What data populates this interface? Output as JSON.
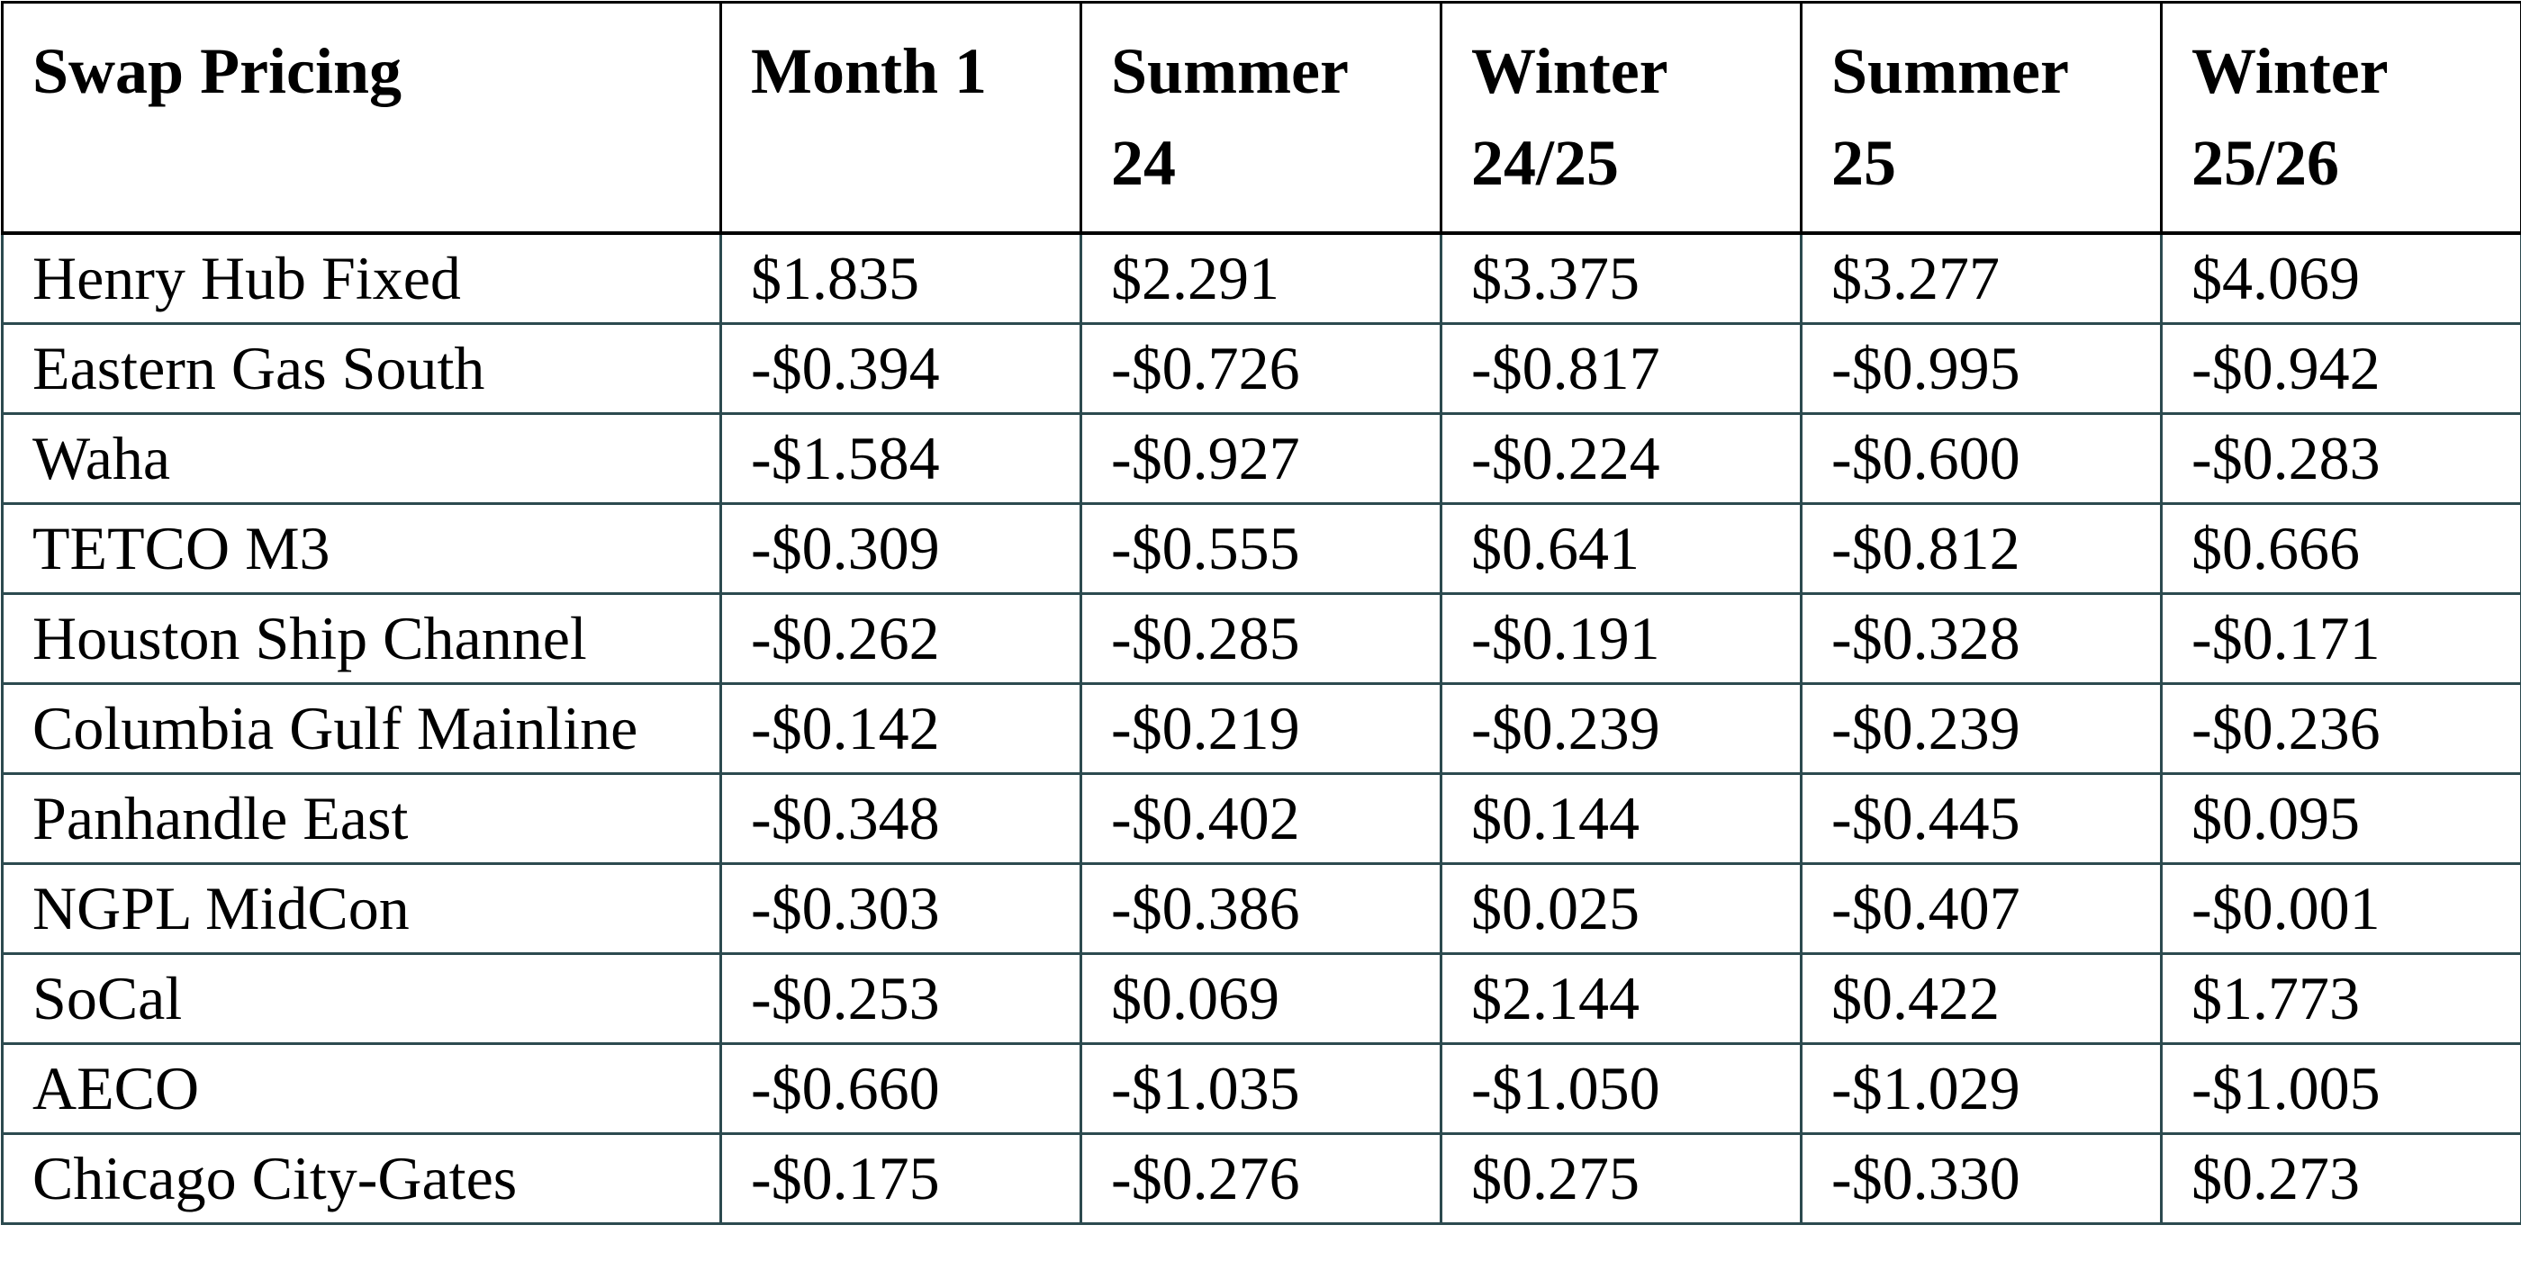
{
  "table": {
    "header": [
      "Swap Pricing",
      "Month 1",
      "Summer 24",
      "Winter 24/25",
      "Summer 25",
      "Winter 25/26"
    ],
    "rows": [
      [
        "Henry Hub Fixed",
        "$1.835",
        "$2.291",
        "$3.375",
        "$3.277",
        "$4.069"
      ],
      [
        "Eastern Gas South",
        "-$0.394",
        "-$0.726",
        "-$0.817",
        "-$0.995",
        "-$0.942"
      ],
      [
        "Waha",
        "-$1.584",
        "-$0.927",
        "-$0.224",
        "-$0.600",
        "-$0.283"
      ],
      [
        "TETCO M3",
        "-$0.309",
        "-$0.555",
        "$0.641",
        "-$0.812",
        "$0.666"
      ],
      [
        "Houston Ship Channel",
        "-$0.262",
        "-$0.285",
        "-$0.191",
        "-$0.328",
        "-$0.171"
      ],
      [
        "Columbia Gulf Mainline",
        "-$0.142",
        "-$0.219",
        "-$0.239",
        "-$0.239",
        "-$0.236"
      ],
      [
        "Panhandle East",
        "-$0.348",
        "-$0.402",
        "$0.144",
        "-$0.445",
        "$0.095"
      ],
      [
        "NGPL MidCon",
        "-$0.303",
        "-$0.386",
        "$0.025",
        "-$0.407",
        "-$0.001"
      ],
      [
        "SoCal",
        "-$0.253",
        "$0.069",
        "$2.144",
        "$0.422",
        "$1.773"
      ],
      [
        "AECO",
        "-$0.660",
        "-$1.035",
        "-$1.050",
        "-$1.029",
        "-$1.005"
      ],
      [
        "Chicago City-Gates",
        "-$0.175",
        "-$0.276",
        "$0.275",
        "-$0.330",
        "$0.273"
      ]
    ]
  }
}
